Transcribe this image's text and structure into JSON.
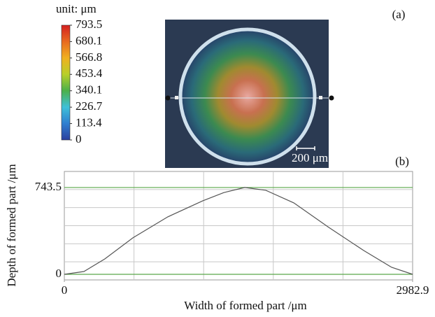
{
  "panel_labels": [
    "(a)",
    "(b)"
  ],
  "scale_bar": "200 μm",
  "chart_data": [
    {
      "type": "colorbar",
      "title": "unit: μm",
      "ylim": [
        0,
        793.5
      ],
      "yticks": [
        0,
        113.4,
        226.7,
        340.1,
        453.4,
        566.8,
        680.1,
        793.5
      ],
      "colormap": [
        "#2a3f9e",
        "#2f7fd0",
        "#3fc0d8",
        "#4cb04a",
        "#b8cf2a",
        "#f0b020",
        "#e86a20",
        "#d42020"
      ]
    },
    {
      "type": "line",
      "xlabel": "Width of formed part /μm",
      "ylabel": "Depth of formed part /μm",
      "x": [
        0,
        168,
        347,
        587,
        886,
        1186,
        1366,
        1545,
        1725,
        1965,
        2264,
        2564,
        2803,
        2982.9
      ],
      "series": [
        {
          "color": "#555555",
          "values": [
            0,
            24,
            132,
            312,
            492,
            630,
            700,
            743.5,
            720,
            612,
            402,
            204,
            60,
            0
          ]
        }
      ],
      "xlim": [
        0,
        2982.9
      ],
      "xticks": [
        0,
        2982.9
      ],
      "ylim": [
        -48,
        881
      ],
      "yticks": [
        0,
        743.5
      ],
      "grid": true,
      "tick_grid_color": "#5aa84a"
    }
  ]
}
